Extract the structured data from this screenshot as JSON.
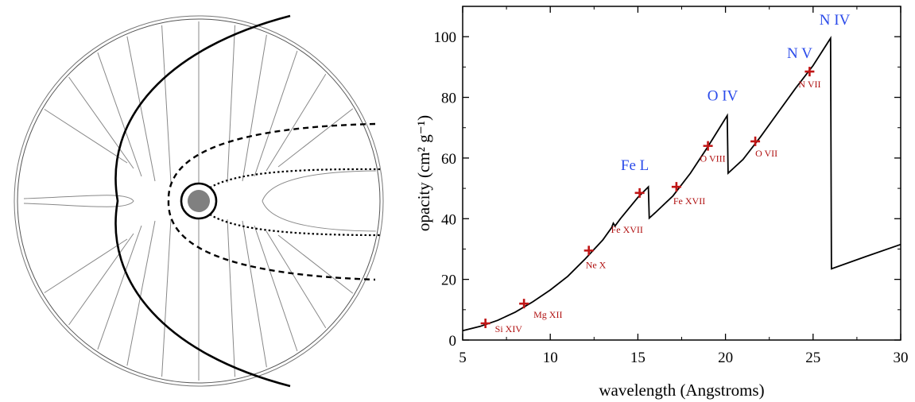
{
  "left_panel": {
    "type": "diagram",
    "description_free": true
  },
  "chart_data": {
    "type": "line",
    "title": "",
    "xlabel": "wavelength (Angstroms)",
    "ylabel": "opacity (cm² g⁻¹)",
    "xlim": [
      5,
      30
    ],
    "ylim": [
      0,
      110
    ],
    "xticks": [
      5,
      10,
      15,
      20,
      25,
      30
    ],
    "yticks": [
      0,
      20,
      40,
      60,
      80,
      100
    ],
    "grid": false,
    "curve": [
      [
        5,
        3.1
      ],
      [
        6,
        4.5
      ],
      [
        7,
        6.5
      ],
      [
        8,
        9.2
      ],
      [
        9,
        12.6
      ],
      [
        10,
        16.5
      ],
      [
        11,
        21.0
      ],
      [
        12,
        26.8
      ],
      [
        13,
        33.0
      ],
      [
        13.5,
        37.0
      ],
      [
        13.6,
        38.5
      ],
      [
        13.7,
        37.6
      ],
      [
        14,
        40.0
      ],
      [
        15,
        47.0
      ],
      [
        15.6,
        50.5
      ],
      [
        15.65,
        40.2
      ],
      [
        16,
        42.0
      ],
      [
        17,
        47.5
      ],
      [
        18,
        55.0
      ],
      [
        19,
        63.8
      ],
      [
        20.1,
        74.0
      ],
      [
        20.15,
        55.0
      ],
      [
        21,
        59.5
      ],
      [
        22,
        67.0
      ],
      [
        23,
        75.0
      ],
      [
        24,
        83.0
      ],
      [
        25,
        90.5
      ],
      [
        26,
        99.5
      ],
      [
        26.05,
        23.5
      ],
      [
        28,
        27.5
      ],
      [
        30,
        31.5
      ]
    ],
    "points": [
      {
        "x": 6.3,
        "y": 5.5,
        "label": "Si XIV"
      },
      {
        "x": 8.5,
        "y": 12.0,
        "label": "Mg XII"
      },
      {
        "x": 12.2,
        "y": 29.5,
        "label": "Ne X"
      },
      {
        "x": 15.1,
        "y": 48.5,
        "label": "Fe XVII"
      },
      {
        "x": 17.2,
        "y": 50.5,
        "label": "Fe XVII"
      },
      {
        "x": 19.0,
        "y": 64.0,
        "label": "O VIII"
      },
      {
        "x": 21.7,
        "y": 65.5,
        "label": "O VII"
      },
      {
        "x": 24.8,
        "y": 88.5,
        "label": "N VII"
      }
    ],
    "edge_labels": [
      {
        "x": 15.1,
        "y": 56,
        "label": "Fe L"
      },
      {
        "x": 20.2,
        "y": 79,
        "label": "O IV"
      },
      {
        "x": 24.6,
        "y": 93,
        "label": "N V"
      },
      {
        "x": 26.6,
        "y": 104,
        "label": "N IV"
      }
    ],
    "colors": {
      "curve": "#000000",
      "points": "#C01515",
      "point_labels": "#B01010",
      "edge_labels": "#2B4BEA"
    }
  }
}
